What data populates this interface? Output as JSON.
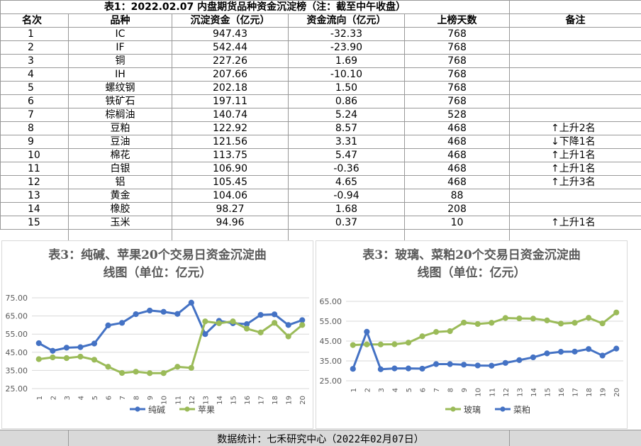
{
  "table": {
    "title": "表1：2022.02.07 内盘期货品种资金沉淀榜（注：截至中午收盘）",
    "headers": [
      "名次",
      "品种",
      "沉淀资金（亿元）",
      "资金流向（亿元）",
      "上榜天数",
      "备注"
    ],
    "rows": [
      [
        "1",
        "IC",
        "947.43",
        "-32.33",
        "768",
        ""
      ],
      [
        "2",
        "IF",
        "542.44",
        "-23.90",
        "768",
        ""
      ],
      [
        "3",
        "铜",
        "227.26",
        "1.69",
        "768",
        ""
      ],
      [
        "4",
        "IH",
        "207.66",
        "-10.10",
        "768",
        ""
      ],
      [
        "5",
        "螺纹钢",
        "202.18",
        "1.50",
        "768",
        ""
      ],
      [
        "6",
        "铁矿石",
        "197.11",
        "0.86",
        "768",
        ""
      ],
      [
        "7",
        "棕榈油",
        "140.74",
        "5.24",
        "528",
        ""
      ],
      [
        "8",
        "豆粕",
        "122.92",
        "8.57",
        "468",
        "↑上升2名"
      ],
      [
        "9",
        "豆油",
        "121.56",
        "3.31",
        "468",
        "↓下降1名"
      ],
      [
        "10",
        "棉花",
        "113.75",
        "5.47",
        "468",
        "↑上升1名"
      ],
      [
        "11",
        "白银",
        "106.90",
        "-0.36",
        "468",
        "↑上升1名"
      ],
      [
        "12",
        "铝",
        "105.45",
        "4.65",
        "468",
        "↑上升3名"
      ],
      [
        "13",
        "黄金",
        "104.06",
        "-0.94",
        "88",
        ""
      ],
      [
        "14",
        "橡胶",
        "98.27",
        "1.68",
        "208",
        ""
      ],
      [
        "15",
        "玉米",
        "94.96",
        "0.37",
        "10",
        "↑上升1名"
      ]
    ]
  },
  "footer": "数据统计：七禾研究中心（2022年02月07日）",
  "chart_data": [
    {
      "type": "line",
      "title": "表3：纯碱、苹果20个交易日资金沉淀曲\n线图（单位：亿元）",
      "x": [
        "1",
        "2",
        "3",
        "4",
        "5",
        "6",
        "7",
        "8",
        "9",
        "10",
        "11",
        "12",
        "13",
        "14",
        "15",
        "16",
        "17",
        "18",
        "19",
        "20"
      ],
      "ylim": [
        25,
        75
      ],
      "yticks": [
        "25.00",
        "35.00",
        "45.00",
        "55.00",
        "65.00",
        "75.00"
      ],
      "grid": true,
      "legend": "bottom",
      "series": [
        {
          "name": "纯碱",
          "color": "#4472c4",
          "values": [
            50.0,
            45.8,
            47.5,
            47.8,
            49.8,
            59.8,
            61.2,
            66.0,
            68.0,
            67.3,
            66.1,
            72.3,
            55.0,
            62.3,
            61.0,
            60.5,
            65.6,
            65.9,
            60.0,
            62.7
          ]
        },
        {
          "name": "苹果",
          "color": "#9bbb59",
          "values": [
            41.2,
            42.2,
            41.8,
            42.6,
            40.9,
            37.0,
            33.6,
            34.3,
            33.5,
            33.5,
            37.0,
            36.4,
            62.0,
            61.0,
            62.0,
            58.0,
            55.9,
            61.2,
            53.7,
            60.0
          ]
        }
      ]
    },
    {
      "type": "line",
      "title": "表3：玻璃、菜粕20个交易日资金沉淀曲\n线图（单位：亿元）",
      "x": [
        "1",
        "2",
        "3",
        "4",
        "5",
        "6",
        "7",
        "8",
        "9",
        "10",
        "11",
        "12",
        "13",
        "14",
        "15",
        "16",
        "17",
        "18",
        "19",
        "20"
      ],
      "ylim": [
        25,
        65
      ],
      "yticks": [
        "25.00",
        "35.00",
        "45.00",
        "55.00",
        "65.00"
      ],
      "grid": true,
      "legend": "bottom",
      "series": [
        {
          "name": "玻璃",
          "color": "#9bbb59",
          "values": [
            43.0,
            43.3,
            43.3,
            43.4,
            44.2,
            47.4,
            49.6,
            50.0,
            54.3,
            53.6,
            54.2,
            56.6,
            56.4,
            56.3,
            55.4,
            53.8,
            54.2,
            56.7,
            53.9,
            59.4
          ]
        },
        {
          "name": "菜粕",
          "color": "#4472c4",
          "values": [
            31.0,
            49.7,
            30.8,
            31.2,
            31.2,
            31.1,
            33.4,
            33.4,
            33.1,
            32.7,
            32.6,
            34.0,
            35.4,
            36.8,
            38.8,
            39.6,
            39.7,
            41.0,
            37.7,
            41.2
          ]
        }
      ]
    }
  ]
}
